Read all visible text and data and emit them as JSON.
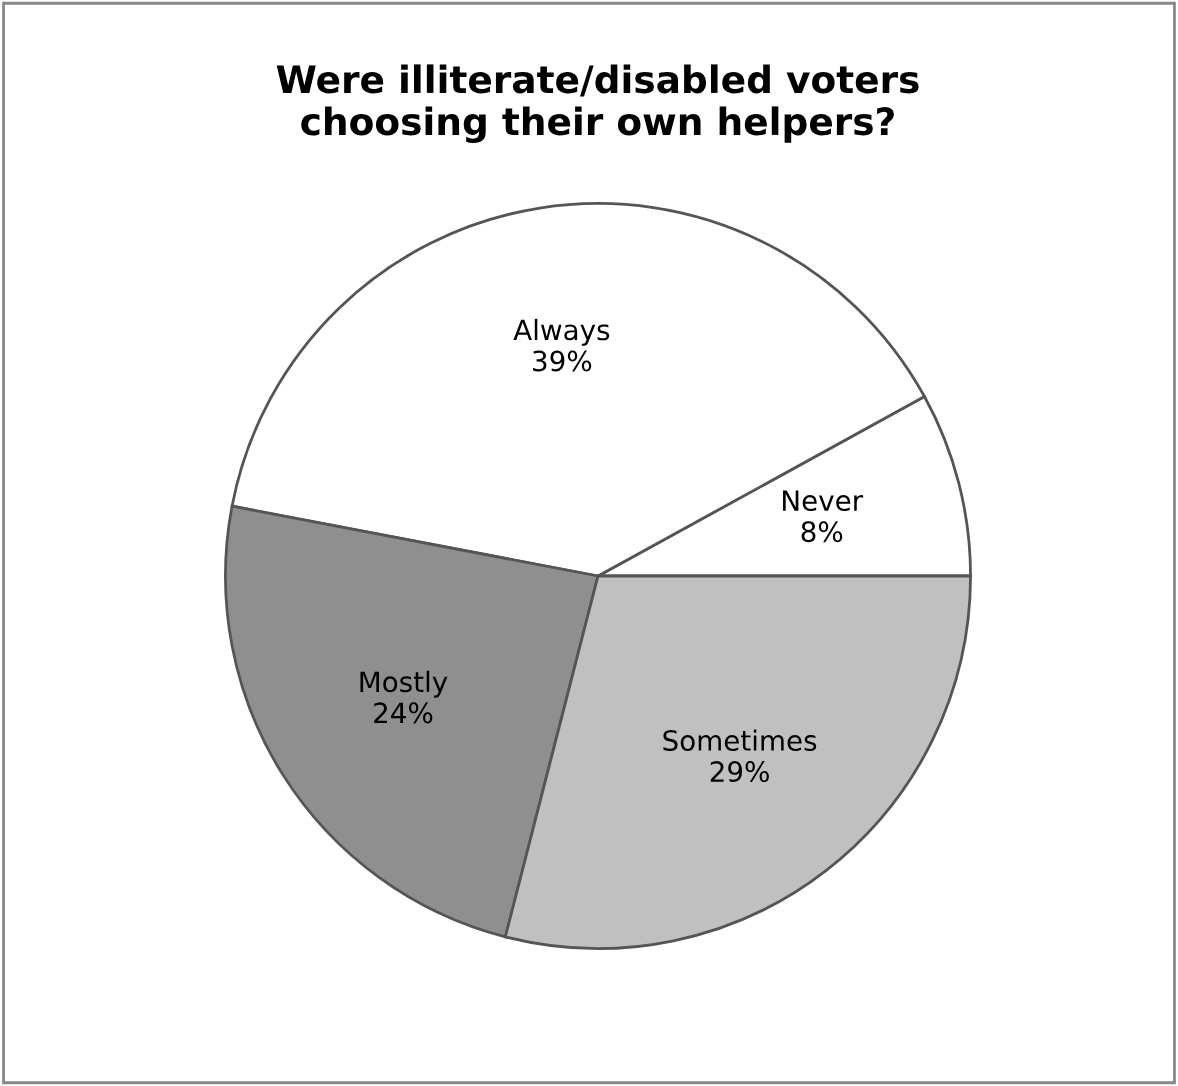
{
  "chart_data": {
    "type": "pie",
    "title": "Were illiterate/disabled voters\nchoosing their own helpers?",
    "categories": [
      "Never",
      "Always",
      "Mostly",
      "Sometimes"
    ],
    "values": [
      8,
      39,
      24,
      29
    ],
    "value_labels": [
      "8%",
      "39%",
      "24%",
      "29%"
    ],
    "colors": [
      "#ffffff",
      "#ffffff",
      "#8f8f8f",
      "#c0c0c0"
    ],
    "legend": false
  }
}
